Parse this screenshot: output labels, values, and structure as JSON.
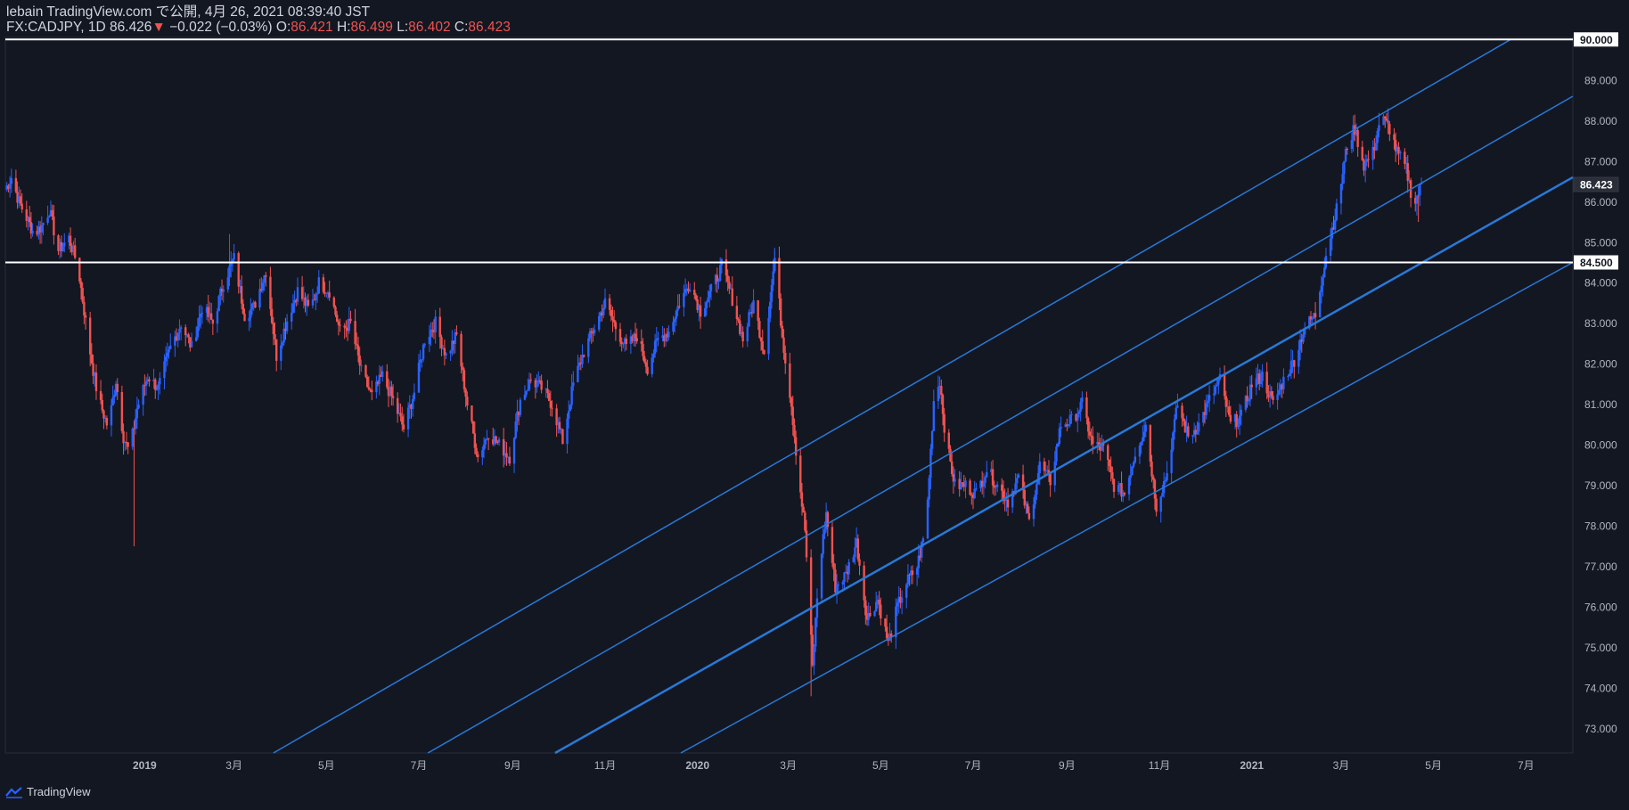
{
  "header": {
    "publisher_line": "lebain TradingView.com で公開, 4月 26, 2021 08:39:40 JST",
    "symbol": "FX:CADJPY, 1D",
    "last": "86.426",
    "change_arrow": "▼",
    "change": "−0.022 (−0.03%)",
    "o_label": "O:",
    "o": "86.421",
    "h_label": "H:",
    "h": "86.499",
    "l_label": "L:",
    "l": "86.402",
    "c_label": "C:",
    "c": "86.423"
  },
  "footer": {
    "brand": "TradingView"
  },
  "colors": {
    "background": "#131722",
    "up": "#2962ff",
    "channel": "#2979d8",
    "down": "#ef5350",
    "level_line": "#ffffff",
    "axis_text": "#b2b5be"
  },
  "icons": [
    "tradingview-logo-icon"
  ],
  "chart_data": {
    "type": "candlestick",
    "symbol": "FX:CADJPY",
    "interval": "1D",
    "x_ticks": [
      "2019",
      "3月",
      "5月",
      "7月",
      "9月",
      "11月",
      "2020",
      "3月",
      "5月",
      "7月",
      "9月",
      "11月",
      "2021",
      "3月",
      "5月",
      "7月"
    ],
    "x_tick_dates": [
      "2019-01-01",
      "2019-03-01",
      "2019-05-01",
      "2019-07-01",
      "2019-09-01",
      "2019-11-01",
      "2020-01-01",
      "2020-03-01",
      "2020-05-01",
      "2020-07-01",
      "2020-09-01",
      "2020-11-01",
      "2021-01-01",
      "2021-03-01",
      "2021-05-01",
      "2021-07-01"
    ],
    "y_ticks": [
      "73.000",
      "74.000",
      "75.000",
      "76.000",
      "77.000",
      "78.000",
      "79.000",
      "80.000",
      "81.000",
      "82.000",
      "83.000",
      "84.000",
      "85.000",
      "86.000",
      "87.000",
      "88.000",
      "89.000"
    ],
    "ylim": [
      72.4,
      90.05
    ],
    "xlim": [
      "2018-10-01",
      "2021-08-01"
    ],
    "price_labels": [
      {
        "value": "90.000",
        "style": "white"
      },
      {
        "value": "86.423",
        "style": "current"
      },
      {
        "value": "84.500",
        "style": "white"
      }
    ],
    "horizontal_lines": [
      90.0,
      84.5
    ],
    "path_points": [
      [
        "2018-10-01",
        86.3
      ],
      [
        "2018-10-05",
        86.6
      ],
      [
        "2018-10-10",
        86.0
      ],
      [
        "2018-10-15",
        85.6
      ],
      [
        "2018-10-20",
        85.2
      ],
      [
        "2018-10-25",
        85.4
      ],
      [
        "2018-10-30",
        85.8
      ],
      [
        "2018-11-05",
        84.8
      ],
      [
        "2018-11-12",
        85.1
      ],
      [
        "2018-11-18",
        84.4
      ],
      [
        "2018-11-25",
        82.5
      ],
      [
        "2018-12-01",
        81.2
      ],
      [
        "2018-12-08",
        80.4
      ],
      [
        "2018-12-13",
        81.6
      ],
      [
        "2018-12-18",
        80.2
      ],
      [
        "2018-12-22",
        79.8
      ],
      [
        "2018-12-27",
        80.9
      ],
      [
        "2019-01-03",
        81.7
      ],
      [
        "2019-01-10",
        81.4
      ],
      [
        "2019-01-18",
        82.4
      ],
      [
        "2019-01-25",
        83.0
      ],
      [
        "2019-02-01",
        82.4
      ],
      [
        "2019-02-08",
        83.4
      ],
      [
        "2019-02-15",
        83.0
      ],
      [
        "2019-02-22",
        84.0
      ],
      [
        "2019-03-01",
        84.6
      ],
      [
        "2019-03-08",
        83.2
      ],
      [
        "2019-03-14",
        83.4
      ],
      [
        "2019-03-22",
        84.3
      ],
      [
        "2019-03-29",
        82.2
      ],
      [
        "2019-04-06",
        83.2
      ],
      [
        "2019-04-12",
        83.8
      ],
      [
        "2019-04-20",
        83.3
      ],
      [
        "2019-04-26",
        84.0
      ],
      [
        "2019-05-03",
        83.8
      ],
      [
        "2019-05-10",
        82.8
      ],
      [
        "2019-05-17",
        83.0
      ],
      [
        "2019-05-24",
        81.8
      ],
      [
        "2019-05-31",
        81.2
      ],
      [
        "2019-06-07",
        81.7
      ],
      [
        "2019-06-14",
        81.1
      ],
      [
        "2019-06-21",
        80.4
      ],
      [
        "2019-06-28",
        81.3
      ],
      [
        "2019-07-05",
        82.6
      ],
      [
        "2019-07-12",
        83.0
      ],
      [
        "2019-07-19",
        82.2
      ],
      [
        "2019-07-26",
        82.7
      ],
      [
        "2019-08-02",
        81.0
      ],
      [
        "2019-08-09",
        79.7
      ],
      [
        "2019-08-16",
        80.3
      ],
      [
        "2019-08-23",
        80.0
      ],
      [
        "2019-08-30",
        79.7
      ],
      [
        "2019-09-06",
        81.1
      ],
      [
        "2019-09-13",
        81.6
      ],
      [
        "2019-09-20",
        81.4
      ],
      [
        "2019-09-27",
        81.0
      ],
      [
        "2019-10-04",
        80.1
      ],
      [
        "2019-10-11",
        81.5
      ],
      [
        "2019-10-18",
        82.3
      ],
      [
        "2019-10-25",
        82.9
      ],
      [
        "2019-11-01",
        83.5
      ],
      [
        "2019-11-08",
        82.9
      ],
      [
        "2019-11-15",
        82.4
      ],
      [
        "2019-11-22",
        82.7
      ],
      [
        "2019-11-29",
        81.9
      ],
      [
        "2019-12-06",
        82.6
      ],
      [
        "2019-12-13",
        82.8
      ],
      [
        "2019-12-20",
        83.5
      ],
      [
        "2019-12-27",
        84.0
      ],
      [
        "2020-01-03",
        83.3
      ],
      [
        "2020-01-10",
        83.8
      ],
      [
        "2020-01-17",
        84.4
      ],
      [
        "2020-01-24",
        83.6
      ],
      [
        "2020-01-31",
        82.6
      ],
      [
        "2020-02-07",
        83.5
      ],
      [
        "2020-02-14",
        82.3
      ],
      [
        "2020-02-21",
        84.6
      ],
      [
        "2020-02-26",
        82.7
      ],
      [
        "2020-03-03",
        81.0
      ],
      [
        "2020-03-07",
        79.5
      ],
      [
        "2020-03-12",
        77.9
      ],
      [
        "2020-03-17",
        74.5
      ],
      [
        "2020-03-21",
        76.8
      ],
      [
        "2020-03-26",
        78.3
      ],
      [
        "2020-04-01",
        76.5
      ],
      [
        "2020-04-08",
        76.8
      ],
      [
        "2020-04-15",
        77.6
      ],
      [
        "2020-04-22",
        75.7
      ],
      [
        "2020-04-29",
        76.2
      ],
      [
        "2020-05-06",
        75.1
      ],
      [
        "2020-05-12",
        76.0
      ],
      [
        "2020-05-18",
        76.6
      ],
      [
        "2020-05-25",
        77.0
      ],
      [
        "2020-05-31",
        78.0
      ],
      [
        "2020-06-05",
        81.1
      ],
      [
        "2020-06-09",
        81.6
      ],
      [
        "2020-06-13",
        80.1
      ],
      [
        "2020-06-19",
        79.0
      ],
      [
        "2020-06-26",
        79.0
      ],
      [
        "2020-07-03",
        78.8
      ],
      [
        "2020-07-10",
        79.4
      ],
      [
        "2020-07-17",
        79.0
      ],
      [
        "2020-07-24",
        78.6
      ],
      [
        "2020-07-31",
        79.2
      ],
      [
        "2020-08-07",
        78.1
      ],
      [
        "2020-08-14",
        79.5
      ],
      [
        "2020-08-21",
        79.1
      ],
      [
        "2020-08-28",
        80.5
      ],
      [
        "2020-09-04",
        80.6
      ],
      [
        "2020-09-11",
        81.0
      ],
      [
        "2020-09-18",
        80.0
      ],
      [
        "2020-09-25",
        79.9
      ],
      [
        "2020-10-02",
        79.0
      ],
      [
        "2020-10-09",
        78.8
      ],
      [
        "2020-10-16",
        79.8
      ],
      [
        "2020-10-23",
        80.5
      ],
      [
        "2020-10-30",
        78.5
      ],
      [
        "2020-11-06",
        79.3
      ],
      [
        "2020-11-13",
        81.0
      ],
      [
        "2020-11-20",
        80.2
      ],
      [
        "2020-11-27",
        80.5
      ],
      [
        "2020-12-04",
        81.1
      ],
      [
        "2020-12-11",
        81.6
      ],
      [
        "2020-12-18",
        80.5
      ],
      [
        "2020-12-25",
        80.7
      ],
      [
        "2021-01-01",
        81.5
      ],
      [
        "2021-01-08",
        81.7
      ],
      [
        "2021-01-15",
        81.0
      ],
      [
        "2021-01-22",
        81.6
      ],
      [
        "2021-01-29",
        82.1
      ],
      [
        "2021-02-05",
        82.9
      ],
      [
        "2021-02-12",
        83.2
      ],
      [
        "2021-02-19",
        84.7
      ],
      [
        "2021-02-26",
        85.8
      ],
      [
        "2021-03-05",
        87.4
      ],
      [
        "2021-03-10",
        87.8
      ],
      [
        "2021-03-16",
        86.9
      ],
      [
        "2021-03-22",
        87.2
      ],
      [
        "2021-03-27",
        88.1
      ],
      [
        "2021-04-02",
        87.8
      ],
      [
        "2021-04-07",
        87.2
      ],
      [
        "2021-04-13",
        86.8
      ],
      [
        "2021-04-18",
        85.9
      ],
      [
        "2021-04-23",
        86.42
      ]
    ],
    "extremes": [
      [
        "2018-12-25",
        77.5,
        "low"
      ],
      [
        "2019-02-26",
        85.2,
        "high"
      ],
      [
        "2020-02-21",
        84.8,
        "high"
      ],
      [
        "2020-03-16",
        73.8,
        "low"
      ],
      [
        "2021-04-01",
        88.3,
        "high"
      ],
      [
        "2021-04-21",
        85.5,
        "low"
      ]
    ],
    "channel_lines": [
      {
        "from": [
          "2019-03-27",
          72.4
        ],
        "to": [
          "2021-06-21",
          90.0
        ],
        "width": 1.5
      },
      {
        "from": [
          "2019-07-07",
          72.4
        ],
        "to": [
          "2021-08-01",
          88.6
        ],
        "width": 1.5
      },
      {
        "from": [
          "2019-09-29",
          72.4
        ],
        "to": [
          "2021-08-01",
          86.6
        ],
        "width": 2.5
      },
      {
        "from": [
          "2019-12-21",
          72.4
        ],
        "to": [
          "2021-08-01",
          84.5
        ],
        "width": 1.5
      }
    ],
    "grid": false
  }
}
